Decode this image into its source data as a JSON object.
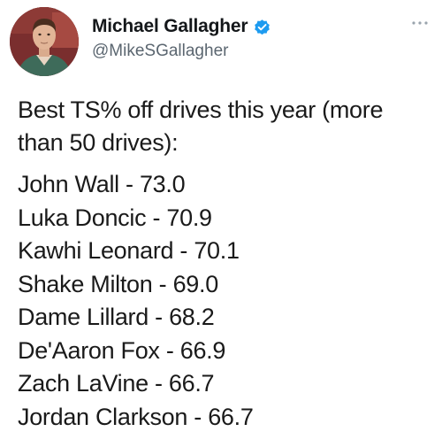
{
  "author": {
    "display_name": "Michael Gallagher",
    "handle": "@MikeSGallagher",
    "verified": true,
    "verified_color": "#1d9bf0"
  },
  "tweet": {
    "headline": "Best TS% off drives this year (more than 50 drives):",
    "players": [
      {
        "name": "John Wall",
        "ts": "73.0"
      },
      {
        "name": "Luka Doncic",
        "ts": "70.9"
      },
      {
        "name": "Kawhi Leonard",
        "ts": "70.1"
      },
      {
        "name": "Shake Milton",
        "ts": "69.0"
      },
      {
        "name": "Dame Lillard",
        "ts": "68.2"
      },
      {
        "name": "De'Aaron Fox",
        "ts": "66.9"
      },
      {
        "name": "Zach LaVine",
        "ts": "66.7"
      },
      {
        "name": "Jordan Clarkson",
        "ts": "66.7"
      }
    ]
  },
  "icons": {
    "verified": "verified-badge-icon",
    "more": "more-options-icon"
  }
}
